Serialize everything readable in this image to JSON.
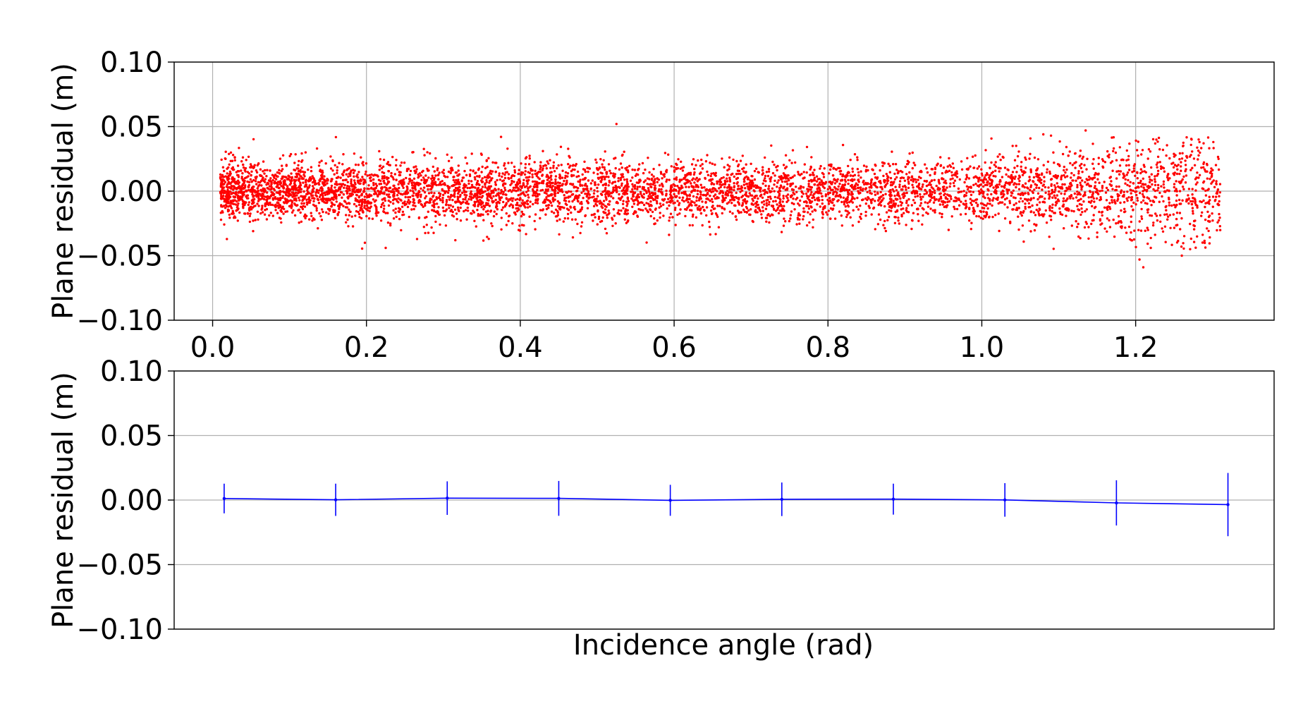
{
  "figure": {
    "xlabel": "Incidence angle (rad)"
  },
  "chart_data": [
    {
      "type": "scatter",
      "title": "",
      "xlabel": "",
      "ylabel": "Plane residual (m)",
      "xlim": [
        -0.05,
        1.38
      ],
      "ylim": [
        -0.1,
        0.1
      ],
      "xticks": [
        0.0,
        0.2,
        0.4,
        0.6,
        0.8,
        1.0,
        1.2
      ],
      "xtick_labels": [
        "0.0",
        "0.2",
        "0.4",
        "0.6",
        "0.8",
        "1.0",
        "1.2"
      ],
      "yticks": [
        0.1,
        0.05,
        0.0,
        -0.05,
        -0.1
      ],
      "ytick_labels": [
        "0.10",
        "0.05",
        "0.00",
        "−0.05",
        "−0.10"
      ],
      "grid": true,
      "color": "#ff0000",
      "point_count": 6000,
      "x_range": [
        0.01,
        1.31
      ],
      "y_mean": 0.0,
      "y_std_by_x": [
        [
          0.0,
          0.011
        ],
        [
          0.4,
          0.012
        ],
        [
          0.8,
          0.011
        ],
        [
          1.0,
          0.012
        ],
        [
          1.1,
          0.016
        ],
        [
          1.2,
          0.019
        ],
        [
          1.31,
          0.022
        ]
      ],
      "outliers": [
        {
          "x": 0.525,
          "y": 0.052
        },
        {
          "x": 0.225,
          "y": -0.044
        },
        {
          "x": 0.198,
          "y": -0.04
        },
        {
          "x": 1.135,
          "y": 0.047
        },
        {
          "x": 1.08,
          "y": 0.044
        },
        {
          "x": 1.09,
          "y": 0.043
        },
        {
          "x": 1.21,
          "y": -0.059
        },
        {
          "x": 1.205,
          "y": -0.053
        },
        {
          "x": 1.26,
          "y": -0.05
        },
        {
          "x": 0.375,
          "y": 0.042
        }
      ]
    },
    {
      "type": "line",
      "title": "",
      "xlabel": "",
      "ylabel": "Plane residual (m)",
      "xlim": [
        -0.05,
        1.38
      ],
      "ylim": [
        -0.1,
        0.1
      ],
      "yticks": [
        0.1,
        0.05,
        0.0,
        -0.05,
        -0.1
      ],
      "ytick_labels": [
        "0.10",
        "0.05",
        "0.00",
        "−0.05",
        "−0.10"
      ],
      "grid": true,
      "color": "#0000ff",
      "series": [
        {
          "x": [
            0.015,
            0.16,
            0.305,
            0.45,
            0.595,
            0.74,
            0.885,
            1.03,
            1.175,
            1.32
          ],
          "values": [
            0.0012,
            0.0002,
            0.0015,
            0.0013,
            -0.0002,
            0.0006,
            0.0007,
            0.0001,
            -0.0022,
            -0.0035
          ],
          "error": [
            0.0115,
            0.0125,
            0.013,
            0.0135,
            0.012,
            0.013,
            0.012,
            0.013,
            0.0175,
            0.0245
          ]
        }
      ]
    }
  ]
}
